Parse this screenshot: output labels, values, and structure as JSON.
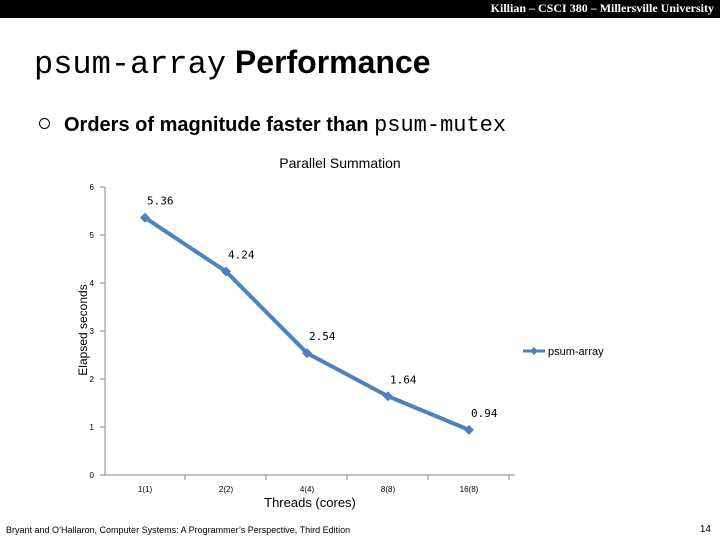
{
  "header": {
    "text": "Killian – CSCI 380 – Millersville University"
  },
  "title": {
    "mono": "psum-array",
    "rest": "Performance"
  },
  "bullet": {
    "text": "Orders of magnitude faster than",
    "code": "psum-mutex"
  },
  "chart_data": {
    "type": "line",
    "title": "Parallel Summation",
    "xlabel": "Threads (cores)",
    "ylabel": "Elapsed seconds",
    "categories": [
      "1(1)",
      "2(2)",
      "4(4)",
      "8(8)",
      "16(8)"
    ],
    "series": [
      {
        "name": "psum-array",
        "values": [
          5.36,
          4.24,
          2.54,
          1.64,
          0.94
        ],
        "color": "#4f81bd"
      }
    ],
    "data_labels": [
      "5.36",
      "4.24",
      "2.54",
      "1.64",
      "0.94"
    ],
    "yticks": [
      "0",
      "1",
      "2",
      "3",
      "4",
      "5",
      "6"
    ],
    "ylim": [
      0,
      6
    ],
    "grid": false,
    "legend_position": "right"
  },
  "footer": {
    "citation": "Bryant and O’Hallaron, Computer Systems: A Programmer’s Perspective, Third Edition",
    "page": "14"
  }
}
